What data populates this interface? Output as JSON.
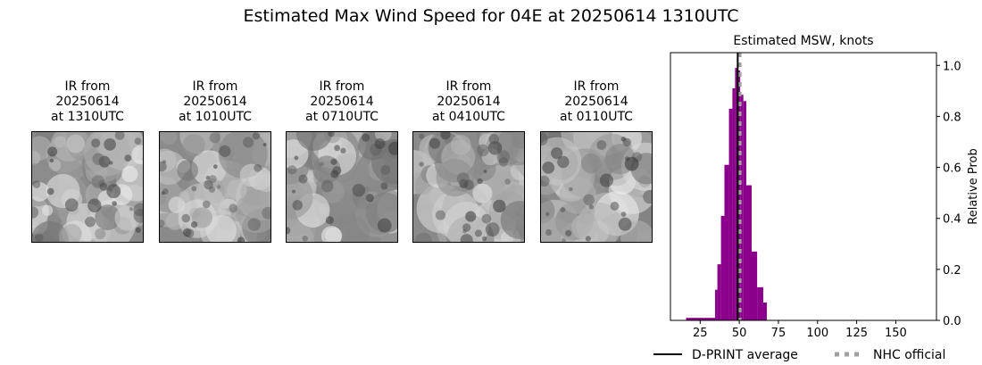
{
  "title": "Estimated Max Wind Speed for 04E at 20250614 1310UTC",
  "panels": [
    {
      "l1": "IR from",
      "l2": "20250614",
      "l3": "at 1310UTC"
    },
    {
      "l1": "IR from",
      "l2": "20250614",
      "l3": "at 1010UTC"
    },
    {
      "l1": "IR from",
      "l2": "20250614",
      "l3": "at 0710UTC"
    },
    {
      "l1": "IR from",
      "l2": "20250614",
      "l3": "at 0410UTC"
    },
    {
      "l1": "IR from",
      "l2": "20250614",
      "l3": "at 0110UTC"
    }
  ],
  "chart_data": {
    "type": "bar",
    "title": "Estimated MSW, knots",
    "ylabel": "Relative Prob",
    "xlim": [
      6,
      176
    ],
    "ylim": [
      0,
      1.05
    ],
    "xticks": [
      25,
      50,
      75,
      100,
      125,
      150
    ],
    "yticks": [
      0.0,
      0.2,
      0.4,
      0.6,
      0.8,
      1.0
    ],
    "bar_color": "#8b008b",
    "bins": [
      {
        "x0": 16,
        "x1": 34.5,
        "p": 0.01
      },
      {
        "x0": 34.5,
        "x1": 36,
        "p": 0.12
      },
      {
        "x0": 36,
        "x1": 38.3,
        "p": 0.22
      },
      {
        "x0": 38.3,
        "x1": 40.5,
        "p": 0.41
      },
      {
        "x0": 40.5,
        "x1": 43.4,
        "p": 0.61
      },
      {
        "x0": 43.4,
        "x1": 45.6,
        "p": 0.83
      },
      {
        "x0": 45.6,
        "x1": 47.3,
        "p": 0.91
      },
      {
        "x0": 47.3,
        "x1": 49,
        "p": 0.99
      },
      {
        "x0": 49,
        "x1": 50.6,
        "p": 0.98
      },
      {
        "x0": 50.6,
        "x1": 52.6,
        "p": 0.885
      },
      {
        "x0": 52.6,
        "x1": 54.5,
        "p": 0.86
      },
      {
        "x0": 54.5,
        "x1": 57.9,
        "p": 0.53
      },
      {
        "x0": 57.9,
        "x1": 61.4,
        "p": 0.27
      },
      {
        "x0": 61.4,
        "x1": 65.3,
        "p": 0.13
      },
      {
        "x0": 65.3,
        "x1": 67.6,
        "p": 0.07
      }
    ],
    "dprint_average": 49,
    "nhc_official": 50,
    "legend": [
      {
        "label": "D-PRINT average",
        "color": "#000000",
        "style": "solid"
      },
      {
        "label": "NHC official",
        "color": "#a0a0a0",
        "style": "dotted"
      }
    ],
    "legend_position": "bottom"
  }
}
